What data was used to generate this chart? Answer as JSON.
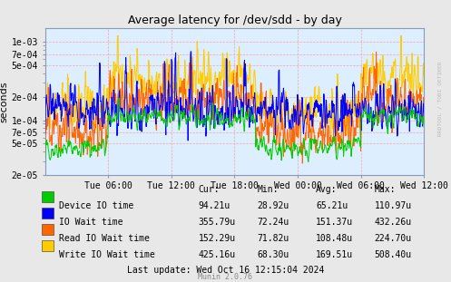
{
  "title": "Average latency for /dev/sdd - by day",
  "ylabel": "seconds",
  "fig_bg_color": "#E8E8E8",
  "plot_bg_color": "#DDEEFF",
  "grid_color": "#FF9999",
  "yticks": [
    2e-05,
    5e-05,
    7e-05,
    0.0001,
    0.0002,
    0.0005,
    0.0007,
    0.001
  ],
  "ytick_labels": [
    "2e-05",
    "5e-05",
    "7e-05",
    "1e-04",
    "2e-04",
    "5e-04",
    "7e-04",
    "1e-03"
  ],
  "xtick_pos": [
    6,
    12,
    18,
    24,
    30,
    36
  ],
  "xtick_labels": [
    "Tue 06:00",
    "Tue 12:00",
    "Tue 18:00",
    "Wed 00:00",
    "Wed 06:00",
    "Wed 12:00"
  ],
  "xlim": [
    0,
    36
  ],
  "ylim": [
    2e-05,
    0.0015
  ],
  "colors": {
    "device_io": "#00CC00",
    "io_wait": "#0000FF",
    "read_io": "#FF6600",
    "write_io": "#FFCC00"
  },
  "legend": [
    {
      "label": "Device IO time",
      "color": "#00CC00"
    },
    {
      "label": "IO Wait time",
      "color": "#0000FF"
    },
    {
      "label": "Read IO Wait time",
      "color": "#FF6600"
    },
    {
      "label": "Write IO Wait time",
      "color": "#FFCC00"
    }
  ],
  "stats": {
    "cur": [
      "94.21u",
      "355.79u",
      "152.29u",
      "425.16u"
    ],
    "min": [
      "28.92u",
      "72.24u",
      "71.82u",
      "68.30u"
    ],
    "avg": [
      "65.21u",
      "151.37u",
      "108.48u",
      "169.51u"
    ],
    "max": [
      "110.97u",
      "432.26u",
      "224.70u",
      "508.40u"
    ]
  },
  "footer": "Last update: Wed Oct 16 12:15:04 2024",
  "munin_version": "Munin 2.0.76",
  "rrdtool_label": "RRDTOOL / TOBI OETIKER"
}
